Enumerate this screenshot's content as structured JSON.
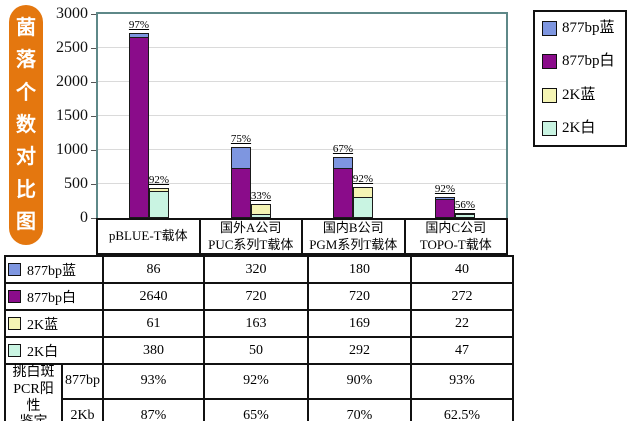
{
  "banner": {
    "title": "菌落个数对比图",
    "color": "#E4770F"
  },
  "chart_data": {
    "type": "bar",
    "stacked": true,
    "title": "菌落个数对比图",
    "xlabel": "",
    "ylabel": "",
    "ylim": [
      0,
      3000
    ],
    "yticks": [
      0,
      500,
      1000,
      1500,
      2000,
      2500,
      3000
    ],
    "grid": "horizontal",
    "legend_position": "right",
    "categories_lines": [
      [
        "pBLUE-T载体"
      ],
      [
        "国外A公司",
        "PUC系列T载体"
      ],
      [
        "国内B公司",
        "PGM系列T载体"
      ],
      [
        "国内C公司",
        "TOPO-T载体"
      ]
    ],
    "series": [
      {
        "name": "877bp蓝",
        "color": "#7E96E0",
        "values": [
          86,
          320,
          180,
          40
        ]
      },
      {
        "name": "877bp白",
        "color": "#8A0C8A",
        "values": [
          2640,
          720,
          720,
          272
        ]
      },
      {
        "name": "2K蓝",
        "color": "#F4F4B4",
        "values": [
          61,
          163,
          169,
          22
        ]
      },
      {
        "name": "2K白",
        "color": "#C9F4E2",
        "values": [
          380,
          50,
          292,
          47
        ]
      }
    ],
    "stack_percent_labels": {
      "stack_877bp": [
        "97%",
        "75%",
        "67%",
        "92%"
      ],
      "stack_2K": [
        "92%",
        "33%",
        "92%",
        "56%"
      ]
    }
  },
  "table": {
    "rows": [
      {
        "label": "877bp蓝",
        "swatch": "#7E96E0",
        "values": [
          "86",
          "320",
          "180",
          "40"
        ]
      },
      {
        "label": "877bp白",
        "swatch": "#8A0C8A",
        "values": [
          "2640",
          "720",
          "720",
          "272"
        ]
      },
      {
        "label": "2K蓝",
        "swatch": "#F4F4B4",
        "values": [
          "61",
          "163",
          "169",
          "22"
        ]
      },
      {
        "label": "2K白",
        "swatch": "#C9F4E2",
        "values": [
          "380",
          "50",
          "292",
          "47"
        ]
      }
    ],
    "pcr_group": {
      "label_lines": [
        "挑白斑",
        "PCR阳性",
        "鉴定"
      ],
      "rows": [
        {
          "sub": "877bp",
          "values": [
            "93%",
            "92%",
            "90%",
            "93%"
          ]
        },
        {
          "sub": "2Kb",
          "values": [
            "87%",
            "65%",
            "70%",
            "62.5%"
          ]
        }
      ]
    }
  }
}
